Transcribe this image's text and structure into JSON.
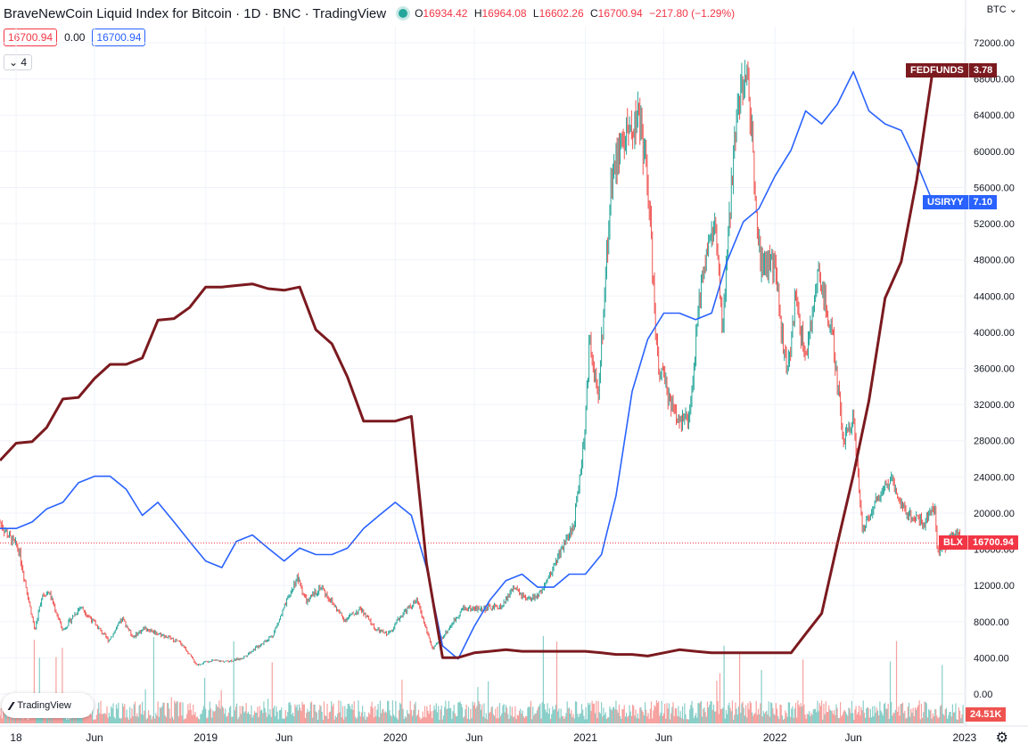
{
  "header": {
    "title": "BraveNewCoin Liquid Index for Bitcoin · 1D · BNC · TradingView",
    "ohlc": [
      {
        "k": "O",
        "v": "16934.42"
      },
      {
        "k": "H",
        "v": "16964.08"
      },
      {
        "k": "L",
        "v": "16602.26"
      },
      {
        "k": "C",
        "v": "16700.94"
      }
    ],
    "change": "−217.80 (−1.29%)",
    "sell_price": "16700.94",
    "spread": "0.00",
    "buy_price": "16700.94",
    "indicators_count": "4",
    "currency": "BTC"
  },
  "logo_text": "TradingView",
  "colors": {
    "up": "#26a69a",
    "down": "#ef5350",
    "blx": "#f23645",
    "fedfunds": "#7b1a1f",
    "usiryy": "#2962ff",
    "volume": "#ef5350"
  },
  "icons": {
    "settings": "gear-icon",
    "logo": "tradingview-logo-icon",
    "status": "market-status-icon",
    "chevron": "chevron-down-icon"
  },
  "chart_data": {
    "type": "line",
    "y_ticks": [
      "72000.00",
      "68000.00",
      "64000.00",
      "60000.00",
      "56000.00",
      "52000.00",
      "48000.00",
      "44000.00",
      "40000.00",
      "36000.00",
      "32000.00",
      "28000.00",
      "24000.00",
      "20000.00",
      "16000.00",
      "12000.00",
      "8000.00",
      "4000.00",
      "0.00"
    ],
    "ylim": [
      0,
      72000
    ],
    "x_ticks": [
      {
        "label": "18",
        "date": "2018-01-01"
      },
      {
        "label": "Jun",
        "date": "2018-06-01"
      },
      {
        "label": "2019",
        "date": "2019-01-01"
      },
      {
        "label": "Jun",
        "date": "2019-06-01"
      },
      {
        "label": "2020",
        "date": "2020-01-01"
      },
      {
        "label": "Jun",
        "date": "2020-06-01"
      },
      {
        "label": "2021",
        "date": "2021-01-01"
      },
      {
        "label": "Jun",
        "date": "2021-06-01"
      },
      {
        "label": "2022",
        "date": "2022-01-01"
      },
      {
        "label": "Jun",
        "date": "2022-06-01"
      },
      {
        "label": "2023",
        "date": "2023-01-01"
      }
    ],
    "xlim": [
      "2017-12-01",
      "2023-01-03"
    ],
    "grid": true,
    "series": [
      {
        "name": "BLX",
        "last_value": "16700.94",
        "points": [
          [
            "2017-12-01",
            19000
          ],
          [
            "2017-12-17",
            17500
          ],
          [
            "2018-01-06",
            16000
          ],
          [
            "2018-02-06",
            7000
          ],
          [
            "2018-02-20",
            11000
          ],
          [
            "2018-03-05",
            11300
          ],
          [
            "2018-04-01",
            7000
          ],
          [
            "2018-05-05",
            9700
          ],
          [
            "2018-06-28",
            5900
          ],
          [
            "2018-07-25",
            8300
          ],
          [
            "2018-08-14",
            6300
          ],
          [
            "2018-09-05",
            7300
          ],
          [
            "2018-10-15",
            6400
          ],
          [
            "2018-11-15",
            5600
          ],
          [
            "2018-12-15",
            3200
          ],
          [
            "2019-01-10",
            3700
          ],
          [
            "2019-02-10",
            3600
          ],
          [
            "2019-03-10",
            3900
          ],
          [
            "2019-04-10",
            5200
          ],
          [
            "2019-05-10",
            6500
          ],
          [
            "2019-06-26",
            12900
          ],
          [
            "2019-07-15",
            10100
          ],
          [
            "2019-08-10",
            11900
          ],
          [
            "2019-09-25",
            8200
          ],
          [
            "2019-10-26",
            9400
          ],
          [
            "2019-11-25",
            7100
          ],
          [
            "2019-12-18",
            6600
          ],
          [
            "2020-01-15",
            8900
          ],
          [
            "2020-02-12",
            10300
          ],
          [
            "2020-03-13",
            4900
          ],
          [
            "2020-04-10",
            7000
          ],
          [
            "2020-05-10",
            9500
          ],
          [
            "2020-06-15",
            9400
          ],
          [
            "2020-07-25",
            9700
          ],
          [
            "2020-08-15",
            11800
          ],
          [
            "2020-09-10",
            10300
          ],
          [
            "2020-10-10",
            11200
          ],
          [
            "2020-11-10",
            15300
          ],
          [
            "2020-12-10",
            18700
          ],
          [
            "2020-12-31",
            29000
          ],
          [
            "2021-01-10",
            40000
          ],
          [
            "2021-01-25",
            32000
          ],
          [
            "2021-02-20",
            57000
          ],
          [
            "2021-03-13",
            61000
          ],
          [
            "2021-04-14",
            64000
          ],
          [
            "2021-05-01",
            57000
          ],
          [
            "2021-05-19",
            37000
          ],
          [
            "2021-06-22",
            31000
          ],
          [
            "2021-07-20",
            30000
          ],
          [
            "2021-08-14",
            47000
          ],
          [
            "2021-09-07",
            52000
          ],
          [
            "2021-09-22",
            40000
          ],
          [
            "2021-10-20",
            66000
          ],
          [
            "2021-11-10",
            68000
          ],
          [
            "2021-12-04",
            48000
          ],
          [
            "2022-01-01",
            47000
          ],
          [
            "2022-01-24",
            35000
          ],
          [
            "2022-02-10",
            44000
          ],
          [
            "2022-03-01",
            37000
          ],
          [
            "2022-03-28",
            47000
          ],
          [
            "2022-04-25",
            38000
          ],
          [
            "2022-05-12",
            28000
          ],
          [
            "2022-06-01",
            31000
          ],
          [
            "2022-06-18",
            18000
          ],
          [
            "2022-07-10",
            21000
          ],
          [
            "2022-08-13",
            24000
          ],
          [
            "2022-09-10",
            20000
          ],
          [
            "2022-10-15",
            19000
          ],
          [
            "2022-11-05",
            21000
          ],
          [
            "2022-11-09",
            16000
          ],
          [
            "2022-11-25",
            16500
          ],
          [
            "2022-12-14",
            18000
          ],
          [
            "2022-12-29",
            16700
          ]
        ]
      },
      {
        "name": "FEDFUNDS",
        "last_value": "3.78",
        "points": [
          [
            "2017-12-01",
            1.3
          ],
          [
            "2018-01-01",
            1.41
          ],
          [
            "2018-02-01",
            1.42
          ],
          [
            "2018-03-01",
            1.51
          ],
          [
            "2018-04-01",
            1.69
          ],
          [
            "2018-05-01",
            1.7
          ],
          [
            "2018-06-01",
            1.82
          ],
          [
            "2018-07-01",
            1.91
          ],
          [
            "2018-08-01",
            1.91
          ],
          [
            "2018-09-01",
            1.95
          ],
          [
            "2018-10-01",
            2.19
          ],
          [
            "2018-11-01",
            2.2
          ],
          [
            "2018-12-01",
            2.27
          ],
          [
            "2019-01-01",
            2.4
          ],
          [
            "2019-02-01",
            2.4
          ],
          [
            "2019-03-01",
            2.41
          ],
          [
            "2019-04-01",
            2.42
          ],
          [
            "2019-05-01",
            2.39
          ],
          [
            "2019-06-01",
            2.38
          ],
          [
            "2019-07-01",
            2.4
          ],
          [
            "2019-08-01",
            2.13
          ],
          [
            "2019-09-01",
            2.04
          ],
          [
            "2019-10-01",
            1.83
          ],
          [
            "2019-11-01",
            1.55
          ],
          [
            "2019-12-01",
            1.55
          ],
          [
            "2020-01-01",
            1.55
          ],
          [
            "2020-02-01",
            1.58
          ],
          [
            "2020-03-01",
            0.65
          ],
          [
            "2020-04-01",
            0.05
          ],
          [
            "2020-05-01",
            0.05
          ],
          [
            "2020-06-01",
            0.08
          ],
          [
            "2020-07-01",
            0.09
          ],
          [
            "2020-08-01",
            0.1
          ],
          [
            "2020-09-01",
            0.09
          ],
          [
            "2020-10-01",
            0.09
          ],
          [
            "2020-11-01",
            0.09
          ],
          [
            "2020-12-01",
            0.09
          ],
          [
            "2021-01-01",
            0.09
          ],
          [
            "2021-02-01",
            0.08
          ],
          [
            "2021-03-01",
            0.07
          ],
          [
            "2021-04-01",
            0.07
          ],
          [
            "2021-05-01",
            0.06
          ],
          [
            "2021-06-01",
            0.08
          ],
          [
            "2021-07-01",
            0.1
          ],
          [
            "2021-08-01",
            0.09
          ],
          [
            "2021-09-01",
            0.08
          ],
          [
            "2021-10-01",
            0.08
          ],
          [
            "2021-11-01",
            0.08
          ],
          [
            "2021-12-01",
            0.08
          ],
          [
            "2022-01-01",
            0.08
          ],
          [
            "2022-02-01",
            0.08
          ],
          [
            "2022-03-01",
            0.2
          ],
          [
            "2022-04-01",
            0.33
          ],
          [
            "2022-05-01",
            0.77
          ],
          [
            "2022-06-01",
            1.21
          ],
          [
            "2022-07-01",
            1.68
          ],
          [
            "2022-08-01",
            2.33
          ],
          [
            "2022-09-01",
            2.56
          ],
          [
            "2022-10-01",
            3.08
          ],
          [
            "2022-11-01",
            3.78
          ]
        ]
      },
      {
        "name": "USIRYY",
        "last_value": "7.10",
        "points": [
          [
            "2017-12-01",
            2.1
          ],
          [
            "2018-01-01",
            2.1
          ],
          [
            "2018-02-01",
            2.2
          ],
          [
            "2018-03-01",
            2.4
          ],
          [
            "2018-04-01",
            2.5
          ],
          [
            "2018-05-01",
            2.8
          ],
          [
            "2018-06-01",
            2.9
          ],
          [
            "2018-07-01",
            2.9
          ],
          [
            "2018-08-01",
            2.7
          ],
          [
            "2018-09-01",
            2.3
          ],
          [
            "2018-10-01",
            2.5
          ],
          [
            "2018-11-01",
            2.2
          ],
          [
            "2018-12-01",
            1.9
          ],
          [
            "2019-01-01",
            1.6
          ],
          [
            "2019-02-01",
            1.5
          ],
          [
            "2019-03-01",
            1.9
          ],
          [
            "2019-04-01",
            2.0
          ],
          [
            "2019-05-01",
            1.8
          ],
          [
            "2019-06-01",
            1.6
          ],
          [
            "2019-07-01",
            1.8
          ],
          [
            "2019-08-01",
            1.7
          ],
          [
            "2019-09-01",
            1.7
          ],
          [
            "2019-10-01",
            1.8
          ],
          [
            "2019-11-01",
            2.1
          ],
          [
            "2019-12-01",
            2.3
          ],
          [
            "2020-01-01",
            2.5
          ],
          [
            "2020-02-01",
            2.3
          ],
          [
            "2020-03-01",
            1.5
          ],
          [
            "2020-04-01",
            0.3
          ],
          [
            "2020-05-01",
            0.1
          ],
          [
            "2020-06-01",
            0.6
          ],
          [
            "2020-07-01",
            1.0
          ],
          [
            "2020-08-01",
            1.3
          ],
          [
            "2020-09-01",
            1.4
          ],
          [
            "2020-10-01",
            1.2
          ],
          [
            "2020-11-01",
            1.2
          ],
          [
            "2020-12-01",
            1.4
          ],
          [
            "2021-01-01",
            1.4
          ],
          [
            "2021-02-01",
            1.7
          ],
          [
            "2021-03-01",
            2.6
          ],
          [
            "2021-04-01",
            4.2
          ],
          [
            "2021-05-01",
            5.0
          ],
          [
            "2021-06-01",
            5.4
          ],
          [
            "2021-07-01",
            5.4
          ],
          [
            "2021-08-01",
            5.3
          ],
          [
            "2021-09-01",
            5.4
          ],
          [
            "2021-10-01",
            6.2
          ],
          [
            "2021-11-01",
            6.8
          ],
          [
            "2021-12-01",
            7.0
          ],
          [
            "2022-01-01",
            7.5
          ],
          [
            "2022-02-01",
            7.9
          ],
          [
            "2022-03-01",
            8.5
          ],
          [
            "2022-04-01",
            8.3
          ],
          [
            "2022-05-01",
            8.6
          ],
          [
            "2022-06-01",
            9.1
          ],
          [
            "2022-07-01",
            8.5
          ],
          [
            "2022-08-01",
            8.3
          ],
          [
            "2022-09-01",
            8.2
          ],
          [
            "2022-10-01",
            7.7
          ],
          [
            "2022-11-01",
            7.1
          ]
        ]
      }
    ],
    "volume": {
      "last_value": "24.51K"
    }
  }
}
